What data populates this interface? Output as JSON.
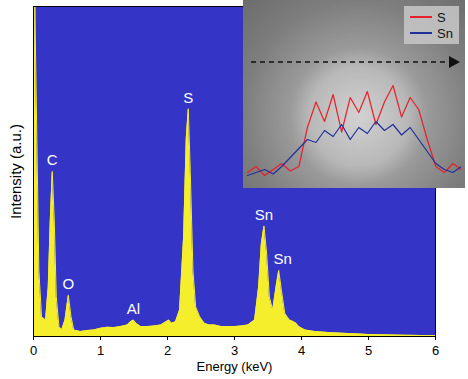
{
  "chart_data": [
    {
      "type": "area",
      "xlabel": "Energy (keV)",
      "ylabel": "Intensity (a.u.)",
      "color": "#f4ee2c",
      "x": [
        0,
        0.02,
        0.05,
        0.08,
        0.12,
        0.18,
        0.22,
        0.25,
        0.28,
        0.31,
        0.34,
        0.38,
        0.42,
        0.47,
        0.52,
        0.56,
        0.6,
        0.7,
        0.8,
        0.9,
        1.0,
        1.1,
        1.2,
        1.3,
        1.4,
        1.45,
        1.49,
        1.53,
        1.6,
        1.7,
        1.8,
        1.9,
        1.98,
        2.02,
        2.06,
        2.12,
        2.18,
        2.24,
        2.28,
        2.31,
        2.34,
        2.38,
        2.42,
        2.48,
        2.55,
        2.62,
        2.7,
        2.8,
        2.9,
        3.0,
        3.1,
        3.2,
        3.3,
        3.36,
        3.4,
        3.44,
        3.48,
        3.52,
        3.57,
        3.62,
        3.66,
        3.7,
        3.75,
        3.82,
        3.88,
        3.92,
        3.96,
        4.05,
        4.2,
        4.4,
        4.6,
        4.8,
        5.0,
        5.2,
        5.5,
        5.8,
        6.0
      ],
      "values": [
        0,
        100,
        60,
        20,
        6,
        5,
        15,
        35,
        50,
        35,
        12,
        3,
        2,
        5,
        12.5,
        6,
        2,
        1.5,
        1.8,
        2,
        2.5,
        2.8,
        2.7,
        3,
        3.5,
        4.5,
        5,
        4,
        3,
        3,
        3.2,
        3.5,
        4.5,
        5,
        4,
        4.5,
        8,
        30,
        60,
        69,
        50,
        20,
        9,
        6,
        4,
        3.5,
        3.5,
        3,
        3,
        3,
        3.2,
        3.5,
        5,
        15,
        28,
        33.5,
        25,
        12,
        8,
        15,
        20,
        14,
        7,
        5,
        4.5,
        4,
        3,
        2,
        1.5,
        1.2,
        1,
        0.8,
        0.6,
        0.5,
        0.4,
        0.3,
        0.3
      ],
      "xlim": [
        0,
        6
      ],
      "xticks": [
        0,
        1,
        2,
        3,
        4,
        5,
        6
      ],
      "ylim": [
        0,
        100
      ],
      "yticks": [],
      "tick_labels": "x",
      "annotations": [
        {
          "text": "C",
          "x": 0.28,
          "y": 50
        },
        {
          "text": "O",
          "x": 0.52,
          "y": 12.5
        },
        {
          "text": "Al",
          "x": 1.49,
          "y": 5
        },
        {
          "text": "S",
          "x": 2.31,
          "y": 69
        },
        {
          "text": "Sn",
          "x": 3.44,
          "y": 33.5
        },
        {
          "text": "Sn",
          "x": 3.72,
          "y": 20
        }
      ]
    },
    {
      "type": "line",
      "x": [
        0,
        4,
        8,
        12,
        16,
        20,
        24,
        28,
        32,
        36,
        40,
        44,
        48,
        52,
        56,
        60,
        64,
        68,
        72,
        76,
        80,
        84,
        88,
        92,
        96,
        100
      ],
      "series": [
        {
          "name": "S",
          "color": "#e8202a",
          "values": [
            8,
            12,
            6,
            10,
            14,
            9,
            12,
            38,
            55,
            42,
            60,
            35,
            58,
            48,
            62,
            40,
            55,
            66,
            45,
            58,
            50,
            30,
            12,
            8,
            14,
            10
          ]
        },
        {
          "name": "Sn",
          "color": "#23309a",
          "values": [
            6,
            8,
            10,
            7,
            12,
            18,
            24,
            30,
            28,
            36,
            32,
            40,
            30,
            38,
            34,
            42,
            36,
            40,
            33,
            38,
            30,
            22,
            14,
            10,
            8,
            12
          ]
        }
      ],
      "xlim": [
        0,
        100
      ],
      "ylim": [
        0,
        120
      ],
      "tick_labels": false,
      "legend": "top-right"
    }
  ]
}
